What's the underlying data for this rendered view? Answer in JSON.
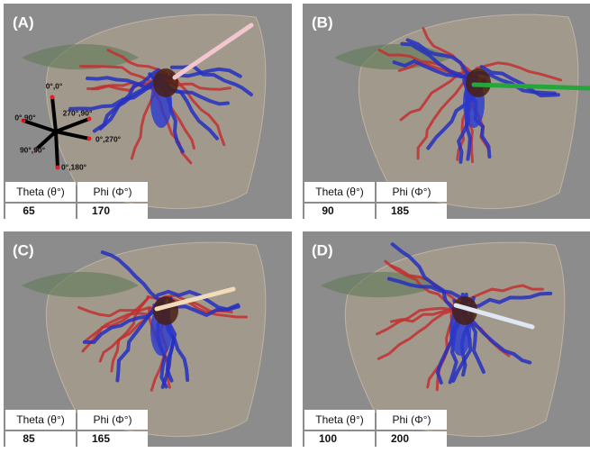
{
  "panels": [
    {
      "label": "(A)",
      "table": {
        "headers": [
          "Theta (θ°)",
          "Phi (Φ°)"
        ],
        "values": [
          65,
          170
        ]
      },
      "axis_labels": [
        "0°,0°",
        "0°,90°",
        "270°,90°",
        "0°,270°",
        "90°,90°",
        "0°,180°"
      ]
    },
    {
      "label": "(B)",
      "table": {
        "headers": [
          "Theta (θ°)",
          "Phi (Φ°)"
        ],
        "values": [
          90,
          185
        ]
      }
    },
    {
      "label": "(C)",
      "table": {
        "headers": [
          "Theta (θ°)",
          "Phi (Φ°)"
        ],
        "values": [
          85,
          165
        ]
      }
    },
    {
      "label": "(D)",
      "table": {
        "headers": [
          "Theta (θ°)",
          "Phi (Φ°)"
        ],
        "values": [
          100,
          200
        ]
      }
    }
  ]
}
